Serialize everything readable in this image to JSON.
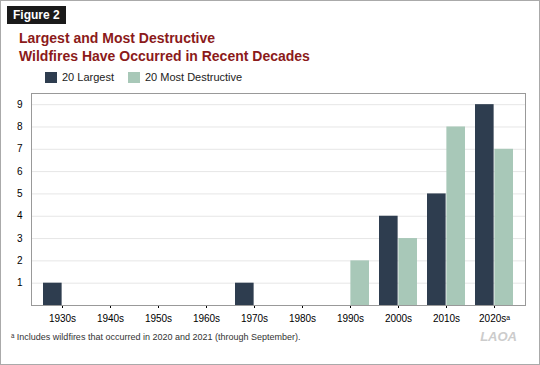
{
  "chart_data": {
    "type": "bar",
    "title": "Largest and Most Destructive\nWildfires Have Occurred in Recent Decades",
    "annotations": [
      "Figure 2",
      "ᵃ Includes wildfires that occurred in 2020 and 2021 (through September).",
      "LAOA"
    ],
    "categories": [
      "1930s",
      "1940s",
      "1950s",
      "1960s",
      "1970s",
      "1980s",
      "1990s",
      "2000s",
      "2010s",
      "2020sᵃ"
    ],
    "series": [
      {
        "name": "20 Largest",
        "color": "#2e3d4f",
        "values": [
          1,
          0,
          0,
          0,
          1,
          0,
          0,
          4,
          5,
          9
        ]
      },
      {
        "name": "20 Most Destructive",
        "color": "#a8c8b8",
        "values": [
          0,
          0,
          0,
          0,
          0,
          0,
          2,
          3,
          8,
          7
        ]
      }
    ],
    "ylim": [
      0,
      9.5
    ],
    "yticks": [
      1,
      2,
      3,
      4,
      5,
      6,
      7,
      8,
      9
    ],
    "grid": true,
    "legend": "upper left"
  }
}
